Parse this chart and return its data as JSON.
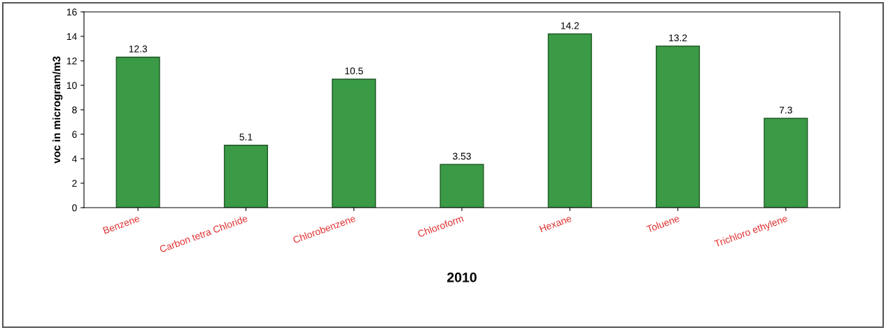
{
  "chart_data": {
    "type": "bar",
    "xlabel": "2010",
    "ylabel": "voc in microgram/m3",
    "categories": [
      "Benzene",
      "Carbon tetra Chloride",
      "Chlorobenzene",
      "Chloroform",
      "Hexane",
      "Toluene",
      "Trichloro ethylene"
    ],
    "values": [
      12.3,
      5.1,
      10.5,
      3.53,
      14.2,
      13.2,
      7.3
    ],
    "color": "#3a9a45",
    "ylim": [
      0,
      16
    ],
    "yticks": [
      0,
      2,
      4,
      6,
      8,
      10,
      12,
      14,
      16
    ],
    "grid": false,
    "data_labels": true,
    "legend": false
  }
}
